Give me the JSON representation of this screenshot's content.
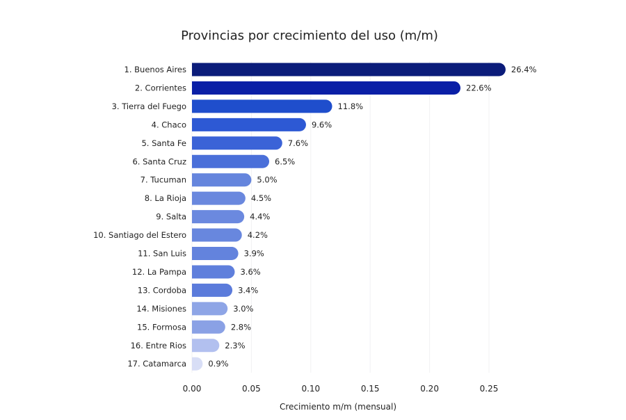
{
  "chart_data": {
    "type": "bar",
    "orientation": "horizontal",
    "title": "Provincias por crecimiento del uso (m/m)",
    "xlabel": "Crecimiento m/m (mensual)",
    "ylabel": "",
    "xlim": [
      0,
      0.26
    ],
    "xticks": [
      0.0,
      0.05,
      0.1,
      0.15,
      0.2,
      0.25
    ],
    "xtick_labels": [
      "0.00",
      "0.05",
      "0.10",
      "0.15",
      "0.20",
      "0.25"
    ],
    "grid": "vertical, faint",
    "categories": [
      "1. Buenos Aires",
      "2. Corrientes",
      "3. Tierra del Fuego",
      "4. Chaco",
      "5. Santa Fe",
      "6. Santa Cruz",
      "7. Tucuman",
      "8. La Rioja",
      "9. Salta",
      "10. Santiago del Estero",
      "11. San Luis",
      "12. La Pampa",
      "13. Cordoba",
      "14. Misiones",
      "15. Formosa",
      "16. Entre Rios",
      "17. Catamarca"
    ],
    "values": [
      0.264,
      0.226,
      0.118,
      0.096,
      0.076,
      0.065,
      0.05,
      0.045,
      0.044,
      0.042,
      0.039,
      0.036,
      0.034,
      0.03,
      0.028,
      0.023,
      0.009
    ],
    "data_labels": [
      "26.4%",
      "22.6%",
      "11.8%",
      "9.6%",
      "7.6%",
      "6.5%",
      "5.0%",
      "4.5%",
      "4.4%",
      "4.2%",
      "3.9%",
      "3.6%",
      "3.4%",
      "3.0%",
      "2.8%",
      "2.3%",
      "0.9%"
    ],
    "colors": [
      "#0b1c7a",
      "#0a1fa6",
      "#1f4ecc",
      "#2d59d4",
      "#3b63d7",
      "#4a6fd9",
      "#6585dd",
      "#6a88de",
      "#6b89df",
      "#6887de",
      "#6383dd",
      "#5f7fdc",
      "#5b7bdb",
      "#8ea5e6",
      "#8aa1e5",
      "#b2c0ef",
      "#d8def6"
    ]
  }
}
